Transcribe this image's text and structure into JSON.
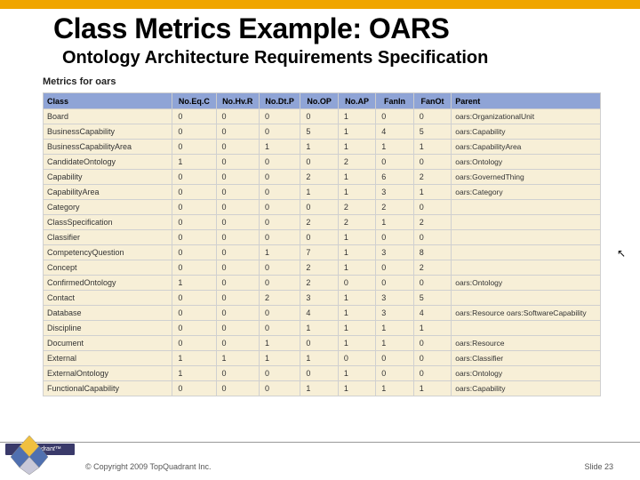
{
  "colors": {
    "top_bar": "#f0a500",
    "header_bg": "#8fa4d6",
    "cell_bg": "#f7efd7",
    "border": "#d0d0d0",
    "logo_bg": "#3a3a6a"
  },
  "title": "Class Metrics Example: OARS",
  "subtitle": "Ontology Architecture Requirements Specification",
  "metrics_label": "Metrics for oars",
  "table": {
    "headers": [
      "Class",
      "No.Eq.C",
      "No.Hv.R",
      "No.Dt.P",
      "No.OP",
      "No.AP",
      "FanIn",
      "FanOt",
      "Parent"
    ],
    "rows": [
      {
        "class": "Board",
        "v": [
          "0",
          "0",
          "0",
          "0",
          "1",
          "0",
          "0"
        ],
        "parent": "oars:OrganizationalUnit"
      },
      {
        "class": "BusinessCapability",
        "v": [
          "0",
          "0",
          "0",
          "5",
          "1",
          "4",
          "5"
        ],
        "parent": "oars:Capability"
      },
      {
        "class": "BusinessCapabilityArea",
        "v": [
          "0",
          "0",
          "1",
          "1",
          "1",
          "1",
          "1"
        ],
        "parent": "oars:CapabilityArea"
      },
      {
        "class": "CandidateOntology",
        "v": [
          "1",
          "0",
          "0",
          "0",
          "2",
          "0",
          "0"
        ],
        "parent": "oars:Ontology"
      },
      {
        "class": "Capability",
        "v": [
          "0",
          "0",
          "0",
          "2",
          "1",
          "6",
          "2"
        ],
        "parent": "oars:GovernedThing"
      },
      {
        "class": "CapabilityArea",
        "v": [
          "0",
          "0",
          "0",
          "1",
          "1",
          "3",
          "1"
        ],
        "parent": "oars:Category"
      },
      {
        "class": "Category",
        "v": [
          "0",
          "0",
          "0",
          "0",
          "2",
          "2",
          "0"
        ],
        "parent": ""
      },
      {
        "class": "ClassSpecification",
        "v": [
          "0",
          "0",
          "0",
          "2",
          "2",
          "1",
          "2"
        ],
        "parent": ""
      },
      {
        "class": "Classifier",
        "v": [
          "0",
          "0",
          "0",
          "0",
          "1",
          "0",
          "0"
        ],
        "parent": ""
      },
      {
        "class": "CompetencyQuestion",
        "v": [
          "0",
          "0",
          "1",
          "7",
          "1",
          "3",
          "8"
        ],
        "parent": ""
      },
      {
        "class": "Concept",
        "v": [
          "0",
          "0",
          "0",
          "2",
          "1",
          "0",
          "2"
        ],
        "parent": ""
      },
      {
        "class": "ConfirmedOntology",
        "v": [
          "1",
          "0",
          "0",
          "2",
          "0",
          "0",
          "0"
        ],
        "parent": "oars:Ontology"
      },
      {
        "class": "Contact",
        "v": [
          "0",
          "0",
          "2",
          "3",
          "1",
          "3",
          "5"
        ],
        "parent": ""
      },
      {
        "class": "Database",
        "v": [
          "0",
          "0",
          "0",
          "4",
          "1",
          "3",
          "4"
        ],
        "parent": "oars:Resource oars:SoftwareCapability"
      },
      {
        "class": "Discipline",
        "v": [
          "0",
          "0",
          "0",
          "1",
          "1",
          "1",
          "1"
        ],
        "parent": ""
      },
      {
        "class": "Document",
        "v": [
          "0",
          "0",
          "1",
          "0",
          "1",
          "1",
          "0"
        ],
        "parent": "oars:Resource"
      },
      {
        "class": "External",
        "v": [
          "1",
          "1",
          "1",
          "1",
          "0",
          "0",
          "0"
        ],
        "parent": "oars:Classifier"
      },
      {
        "class": "ExternalOntology",
        "v": [
          "1",
          "0",
          "0",
          "0",
          "1",
          "0",
          "0"
        ],
        "parent": "oars:Ontology"
      },
      {
        "class": "FunctionalCapability",
        "v": [
          "0",
          "0",
          "0",
          "1",
          "1",
          "1",
          "1"
        ],
        "parent": "oars:Capability"
      }
    ]
  },
  "logo_text": "TopQuadrant™",
  "copyright": "© Copyright 2009 TopQuadrant Inc.",
  "slide_num": "Slide 23"
}
